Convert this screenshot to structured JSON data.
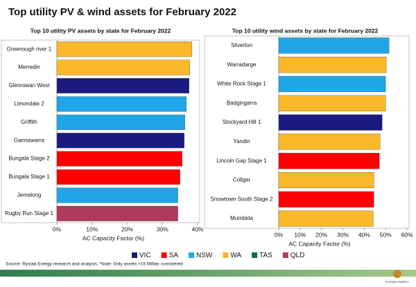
{
  "title": "Top utility PV & wind assets for February 2022",
  "chart_data": [
    {
      "type": "bar",
      "orientation": "horizontal",
      "title": "Top 10 utility PV assets by state for February 2022",
      "categories": [
        "Greenough river 1",
        "Merredin",
        "Glenrowan West",
        "Limondale 2",
        "Griffith",
        "Gannawarra",
        "Bungala Stage 2",
        "Bungala Stage 1",
        "Jemalong",
        "Rugby Run Stage 1"
      ],
      "values": [
        38.4,
        37.8,
        37.6,
        36.8,
        36.4,
        36.2,
        35.6,
        35.0,
        34.4,
        34.4
      ],
      "colors": [
        "#fbb829",
        "#fbb829",
        "#1a1a80",
        "#1ea6e8",
        "#1ea6e8",
        "#1a1a80",
        "#ff0000",
        "#ff0000",
        "#1ea6e8",
        "#b03a5b"
      ],
      "xlim": [
        0,
        40
      ],
      "xticks": [
        {
          "value": 0,
          "label": "0%"
        },
        {
          "value": 10,
          "label": "10%"
        },
        {
          "value": 20,
          "label": "20%"
        },
        {
          "value": 30,
          "label": "30%"
        },
        {
          "value": 40,
          "label": "40%"
        }
      ],
      "xlabel": "AC Capacity Factor (%)"
    },
    {
      "type": "bar",
      "orientation": "horizontal",
      "title": "Top 10 utility  wind assets by state for February 2022",
      "categories": [
        "Silverton",
        "Warradarge",
        "White Rock Stage 1",
        "Badgingarra",
        "Stockyard Hill 1",
        "Yandin",
        "Lincoln Gap Stage 1",
        "Collgar",
        "Snowtown South Stage 2",
        "Mumbida"
      ],
      "values": [
        51.6,
        50.3,
        50.0,
        50.0,
        48.4,
        47.4,
        47.1,
        44.5,
        44.5,
        44.2
      ],
      "colors": [
        "#1ea6e8",
        "#fbb829",
        "#1ea6e8",
        "#fbb829",
        "#1a1a80",
        "#fbb829",
        "#ff0000",
        "#fbb829",
        "#ff0000",
        "#fbb829"
      ],
      "xlim": [
        0,
        60
      ],
      "xticks": [
        {
          "value": 0,
          "label": "0%"
        },
        {
          "value": 10,
          "label": "10%"
        },
        {
          "value": 20,
          "label": "20%"
        },
        {
          "value": 30,
          "label": "30%"
        },
        {
          "value": 40,
          "label": "40%"
        },
        {
          "value": 50,
          "label": "50%"
        },
        {
          "value": 60,
          "label": "60%"
        }
      ],
      "xlabel": "AC Capacity Factor (%)"
    }
  ],
  "legend": [
    {
      "name": "VIC",
      "color": "#1a1a80"
    },
    {
      "name": "SA",
      "color": "#ff0000"
    },
    {
      "name": "NSW",
      "color": "#1ea6e8"
    },
    {
      "name": "WA",
      "color": "#fbb829"
    },
    {
      "name": "TAS",
      "color": "#0e6b4f"
    },
    {
      "name": "QLD",
      "color": "#b03a5b"
    }
  ],
  "source": "Source: Rystad Energy research and analysis, *Note: Only assets >15 MWac considered",
  "logo": "RYSTAD ENERGY"
}
